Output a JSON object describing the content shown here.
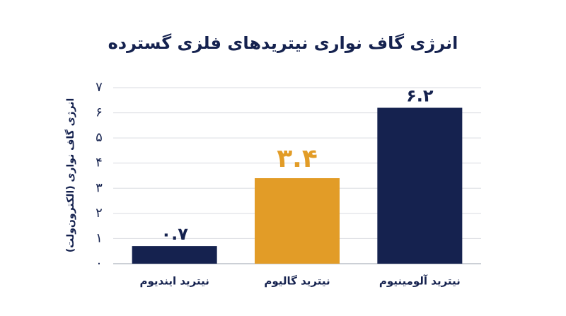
{
  "chart_data": {
    "type": "bar",
    "title": "انرژی گاف نواری نیتریدهای فلزی گسترده",
    "y_label": "انرژی گاف نواری (الکترون‌ولت)",
    "categories": [
      "نیترید ایندیوم",
      "نیترید گالیوم",
      "نیترید آلومینیوم"
    ],
    "values": [
      0.7,
      3.4,
      6.2
    ],
    "value_labels": [
      "۰.۷",
      "۳.۴",
      "۶.۲"
    ],
    "colors": [
      "#15224f",
      "#e29c27",
      "#15224f"
    ],
    "ylim": [
      0,
      7
    ],
    "yticks": [
      {
        "value": 0,
        "label": "۰"
      },
      {
        "value": 1,
        "label": "۱"
      },
      {
        "value": 2,
        "label": "۲"
      },
      {
        "value": 3,
        "label": "۳"
      },
      {
        "value": 4,
        "label": "۴"
      },
      {
        "value": 5,
        "label": "۵"
      },
      {
        "value": 6,
        "label": "۶"
      },
      {
        "value": 7,
        "label": "۷"
      }
    ],
    "grid": true
  }
}
